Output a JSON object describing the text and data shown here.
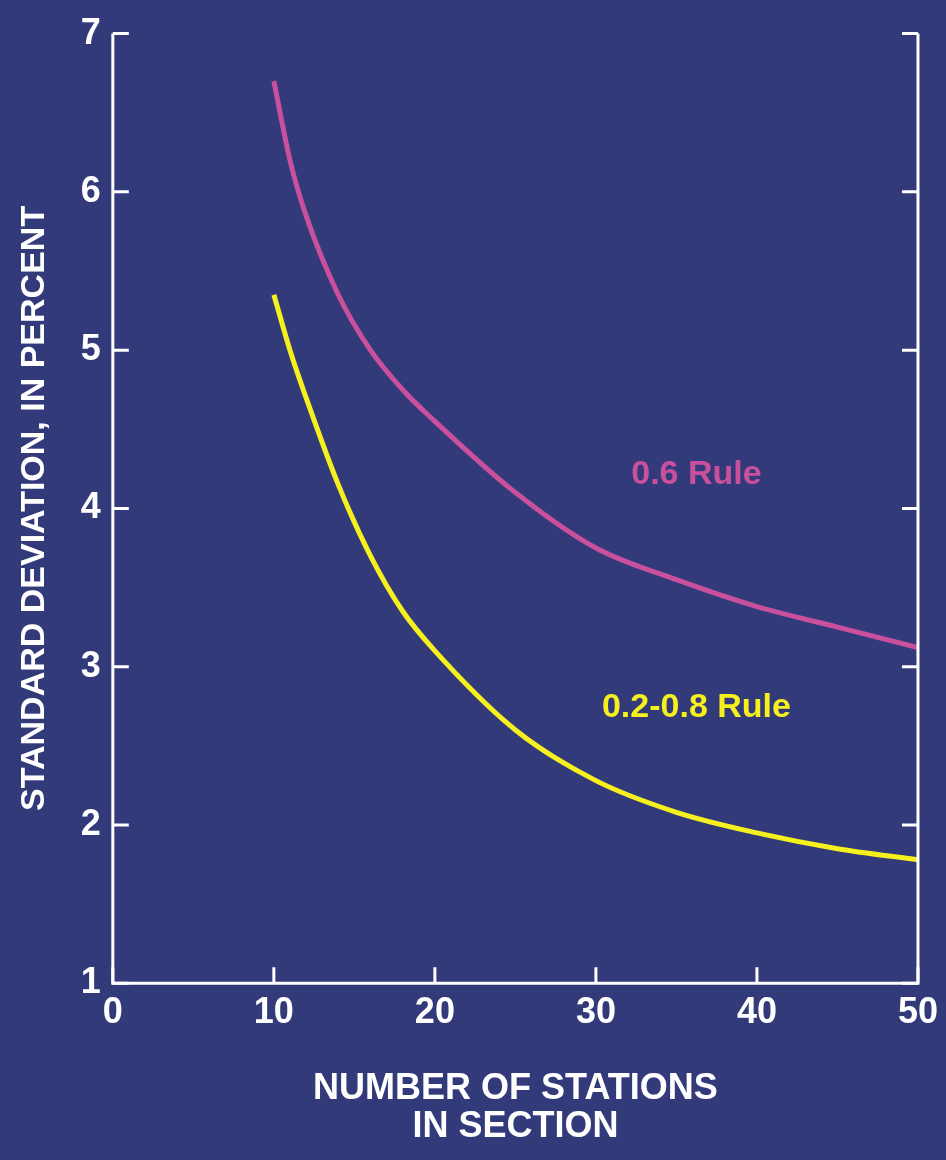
{
  "chart_data": {
    "type": "line",
    "xlabel": "NUMBER OF STATIONS IN SECTION",
    "ylabel": "STANDARD DEVIATION, IN PERCENT",
    "xlim": [
      0,
      50
    ],
    "xticks": [
      0,
      10,
      20,
      30,
      40,
      50
    ],
    "ylim": [
      1,
      7
    ],
    "yticks": [
      1,
      2,
      3,
      4,
      5,
      6,
      7
    ],
    "grid": false,
    "legend": false,
    "marker": "none",
    "line_style": "solid",
    "series": [
      {
        "name": "0.6 Rule",
        "color": "#c8509c",
        "x": [
          10,
          11,
          12,
          14,
          16,
          18,
          20,
          25,
          30,
          35,
          40,
          45,
          50
        ],
        "values": [
          6.7,
          6.2,
          5.85,
          5.35,
          5.0,
          4.75,
          4.55,
          4.1,
          3.75,
          3.55,
          3.38,
          3.25,
          3.12
        ]
      },
      {
        "name": "0.2-0.8 Rule",
        "color": "#f5f01e",
        "x": [
          10,
          11,
          12,
          14,
          16,
          18,
          20,
          25,
          30,
          35,
          40,
          45,
          50
        ],
        "values": [
          5.35,
          5.0,
          4.7,
          4.15,
          3.7,
          3.35,
          3.1,
          2.6,
          2.28,
          2.08,
          1.95,
          1.85,
          1.78
        ]
      }
    ]
  }
}
